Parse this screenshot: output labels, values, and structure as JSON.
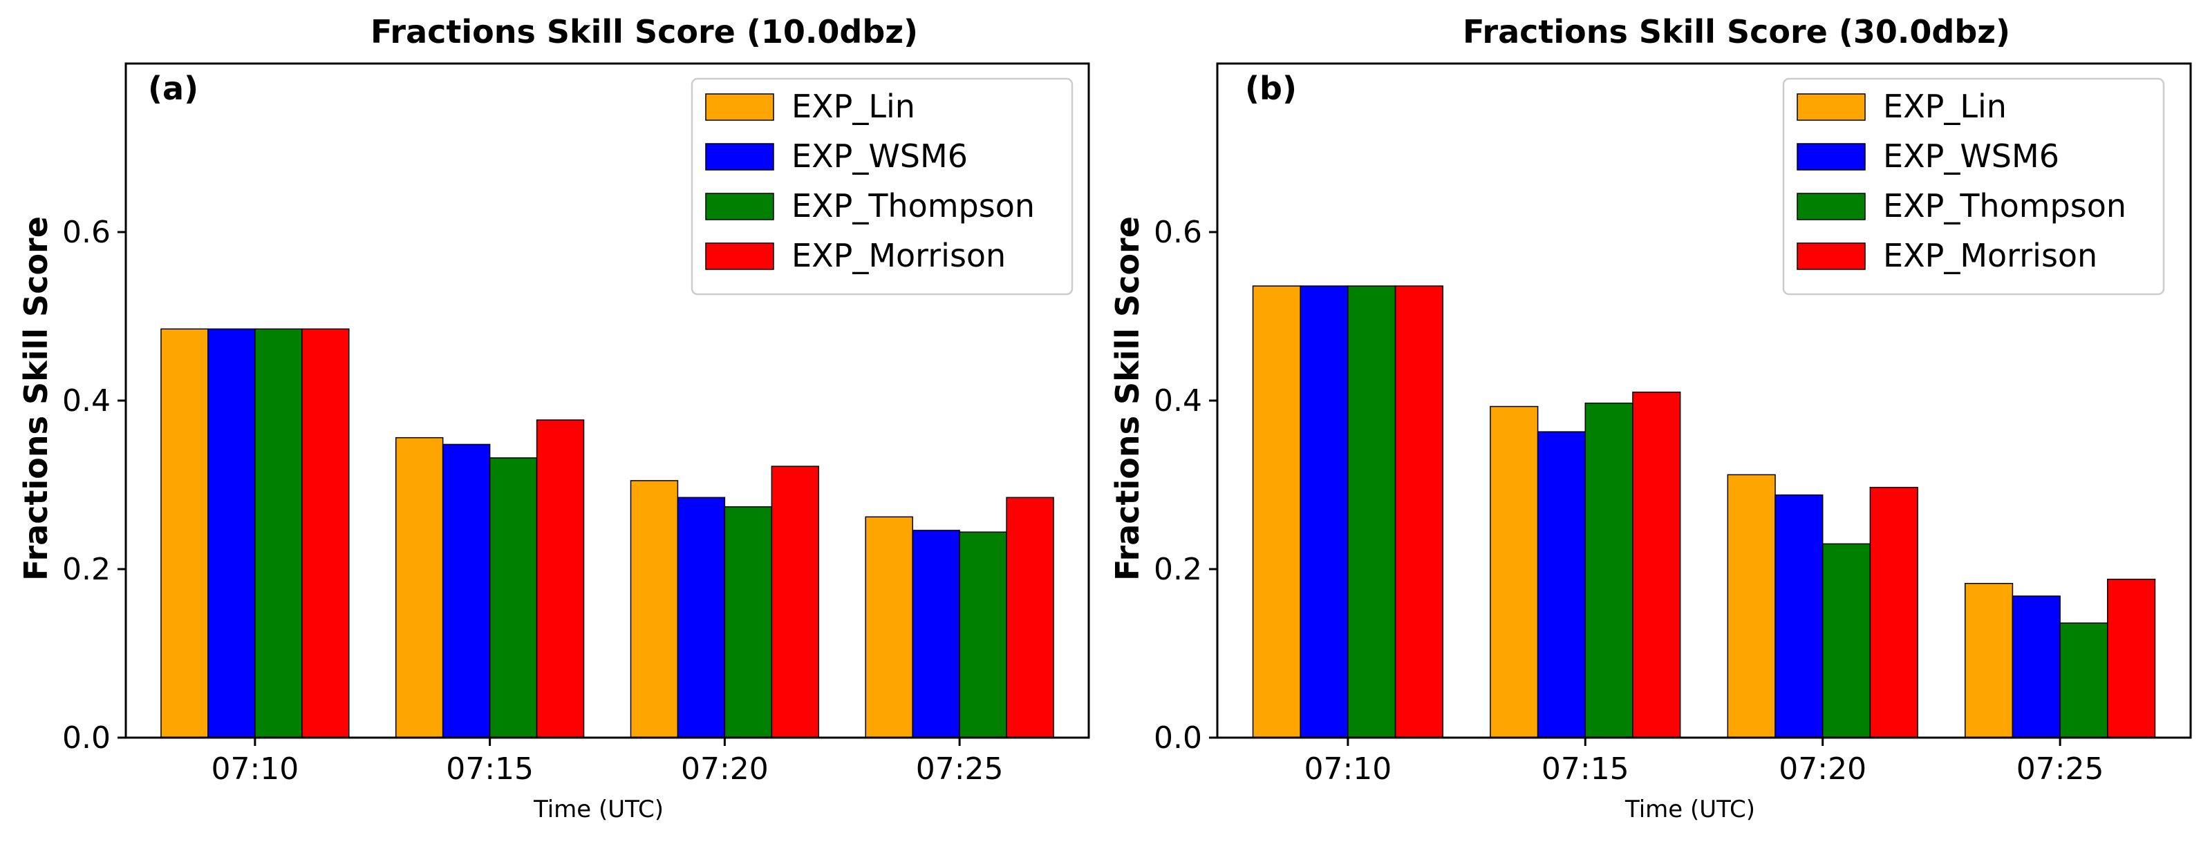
{
  "chart_data": [
    {
      "type": "bar",
      "panel_label": "(a)",
      "title": "Fractions Skill Score (10.0dbz)",
      "xlabel": "Time (UTC)",
      "ylabel": "Fractions Skill Score",
      "ylim": [
        0,
        0.8
      ],
      "yticks": [
        "0.0",
        "0.2",
        "0.4",
        "0.6"
      ],
      "ytick_values": [
        0,
        0.2,
        0.4,
        0.6
      ],
      "legend_position": "top-right",
      "categories": [
        "07:10",
        "07:15",
        "07:20",
        "07:25"
      ],
      "series": [
        {
          "name": "EXP_Lin",
          "color": "#FFA500",
          "values": [
            0.485,
            0.356,
            0.305,
            0.262
          ]
        },
        {
          "name": "EXP_WSM6",
          "color": "#0000FF",
          "values": [
            0.485,
            0.348,
            0.285,
            0.246
          ]
        },
        {
          "name": "EXP_Thompson",
          "color": "#008000",
          "values": [
            0.485,
            0.332,
            0.274,
            0.244
          ]
        },
        {
          "name": "EXP_Morrison",
          "color": "#FF0000",
          "values": [
            0.485,
            0.377,
            0.322,
            0.285
          ]
        }
      ]
    },
    {
      "type": "bar",
      "panel_label": "(b)",
      "title": "Fractions Skill Score (30.0dbz)",
      "xlabel": "Time (UTC)",
      "ylabel": "Fractions Skill Score",
      "ylim": [
        0,
        0.8
      ],
      "yticks": [
        "0.0",
        "0.2",
        "0.4",
        "0.6"
      ],
      "ytick_values": [
        0,
        0.2,
        0.4,
        0.6
      ],
      "legend_position": "top-right",
      "categories": [
        "07:10",
        "07:15",
        "07:20",
        "07:25"
      ],
      "series": [
        {
          "name": "EXP_Lin",
          "color": "#FFA500",
          "values": [
            0.536,
            0.393,
            0.312,
            0.183
          ]
        },
        {
          "name": "EXP_WSM6",
          "color": "#0000FF",
          "values": [
            0.536,
            0.363,
            0.288,
            0.168
          ]
        },
        {
          "name": "EXP_Thompson",
          "color": "#008000",
          "values": [
            0.536,
            0.397,
            0.23,
            0.136
          ]
        },
        {
          "name": "EXP_Morrison",
          "color": "#FF0000",
          "values": [
            0.536,
            0.41,
            0.297,
            0.188
          ]
        }
      ]
    }
  ]
}
